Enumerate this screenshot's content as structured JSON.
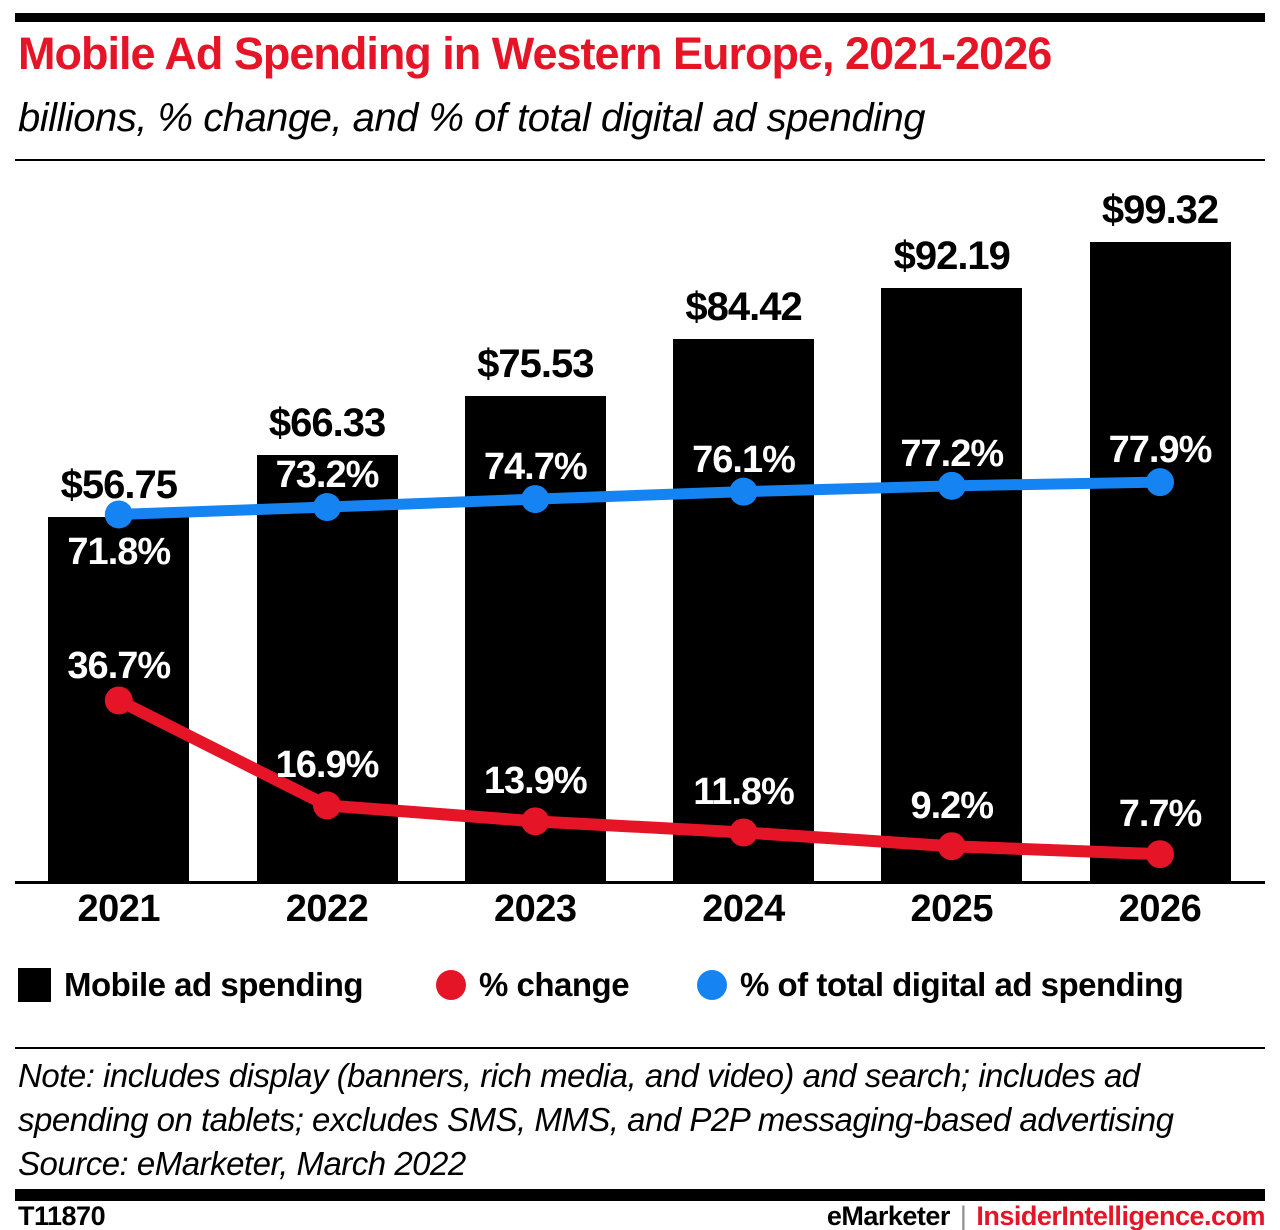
{
  "header": {
    "title": "Mobile Ad Spending in Western Europe, 2021-2026",
    "subtitle": "billions, % change, and % of total digital ad spending"
  },
  "chart_data": {
    "type": "bar",
    "title": "Mobile Ad Spending in Western Europe, 2021-2026",
    "categories": [
      "2021",
      "2022",
      "2023",
      "2024",
      "2025",
      "2026"
    ],
    "series": [
      {
        "name": "Mobile ad spending",
        "type": "bar",
        "unit": "billions USD",
        "values": [
          56.75,
          66.33,
          75.53,
          84.42,
          92.19,
          99.32
        ],
        "labels": [
          "$56.75",
          "$66.33",
          "$75.53",
          "$84.42",
          "$92.19",
          "$99.32"
        ],
        "color": "#000000"
      },
      {
        "name": "% change",
        "type": "line",
        "unit": "%",
        "values": [
          36.7,
          16.9,
          13.9,
          11.8,
          9.2,
          7.7
        ],
        "labels": [
          "36.7%",
          "16.9%",
          "13.9%",
          "11.8%",
          "9.2%",
          "7.7%"
        ],
        "color": "#e51426"
      },
      {
        "name": "% of total digital ad spending",
        "type": "line",
        "unit": "%",
        "values": [
          71.8,
          73.2,
          74.7,
          76.1,
          77.2,
          77.9
        ],
        "labels": [
          "71.8%",
          "73.2%",
          "74.7%",
          "76.1%",
          "77.2%",
          "77.9%"
        ],
        "color": "#1584f2"
      }
    ],
    "grid": false,
    "legend_position": "bottom",
    "axes_hidden": true
  },
  "legend": {
    "items": [
      {
        "label": "Mobile ad spending",
        "shape": "square",
        "color": "#000000"
      },
      {
        "label": "% change",
        "shape": "circle",
        "color": "#e51426"
      },
      {
        "label": "% of total digital ad spending",
        "shape": "circle",
        "color": "#1584f2"
      }
    ]
  },
  "note": {
    "lines": [
      "Note: includes display (banners, rich media, and video) and search; includes ad",
      "spending on tablets; excludes SMS, MMS, and P2P messaging-based advertising"
    ],
    "source": "Source: eMarketer, March 2022"
  },
  "footer": {
    "id": "T11870",
    "brand": "eMarketer",
    "separator": "|",
    "site": "InsiderIntelligence.com"
  },
  "colors": {
    "red": "#e51426",
    "blue": "#1584f2",
    "black": "#000000",
    "gray": "#8e8e8e"
  }
}
